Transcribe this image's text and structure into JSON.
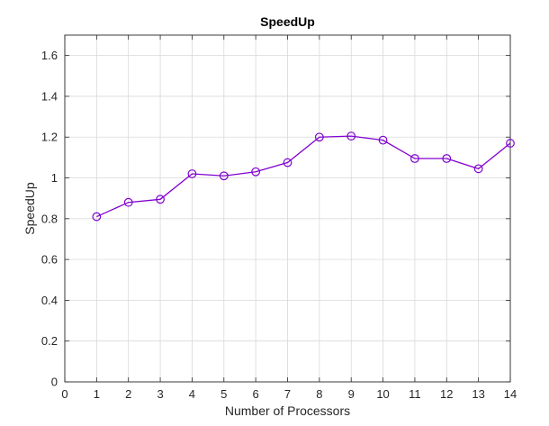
{
  "chart_data": {
    "type": "line",
    "title": "SpeedUp",
    "xlabel": "Number of Processors",
    "ylabel": "SpeedUp",
    "xlim": [
      0,
      14
    ],
    "ylim": [
      0,
      1.7
    ],
    "xticks": [
      "0",
      "1",
      "2",
      "3",
      "4",
      "5",
      "6",
      "7",
      "8",
      "9",
      "10",
      "11",
      "12",
      "13",
      "14"
    ],
    "yticks": [
      "0",
      "0.2",
      "0.4",
      "0.6",
      "0.8",
      "1",
      "1.2",
      "1.4",
      "1.6"
    ],
    "grid": true,
    "marker": "circle",
    "series": [
      {
        "color": "#8000d0",
        "x": [
          1,
          2,
          3,
          4,
          5,
          6,
          7,
          8,
          9,
          10,
          11,
          12,
          13,
          14
        ],
        "values": [
          0.81,
          0.88,
          0.895,
          1.02,
          1.01,
          1.03,
          1.075,
          1.2,
          1.205,
          1.185,
          1.095,
          1.095,
          1.045,
          1.17
        ]
      }
    ]
  }
}
